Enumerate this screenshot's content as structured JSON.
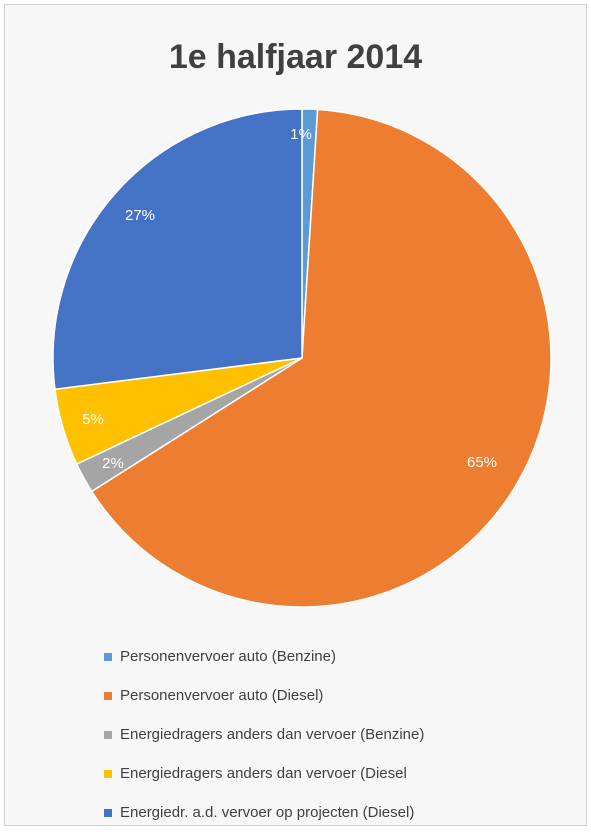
{
  "chart_data": {
    "type": "pie",
    "title": "1e halfjaar 2014",
    "slices": [
      {
        "label": "Personenvervoer auto (Benzine)",
        "value": 1,
        "data_label": "1%",
        "color": "#5b9bd5"
      },
      {
        "label": "Personenvervoer auto (Diesel)",
        "value": 65,
        "data_label": "65%",
        "color": "#ed7d31"
      },
      {
        "label": "Energiedragers anders dan vervoer (Benzine)",
        "value": 2,
        "data_label": "2%",
        "color": "#a5a5a5"
      },
      {
        "label": "Energiedragers anders dan vervoer (Diesel",
        "value": 5,
        "data_label": "5%",
        "color": "#ffc000"
      },
      {
        "label": "Energiedr. a.d. vervoer op projecten (Diesel)",
        "value": 27,
        "data_label": "27%",
        "color": "#4472c4"
      }
    ],
    "legend_position": "bottom",
    "start_angle": "12 o'clock",
    "direction": "clockwise"
  }
}
